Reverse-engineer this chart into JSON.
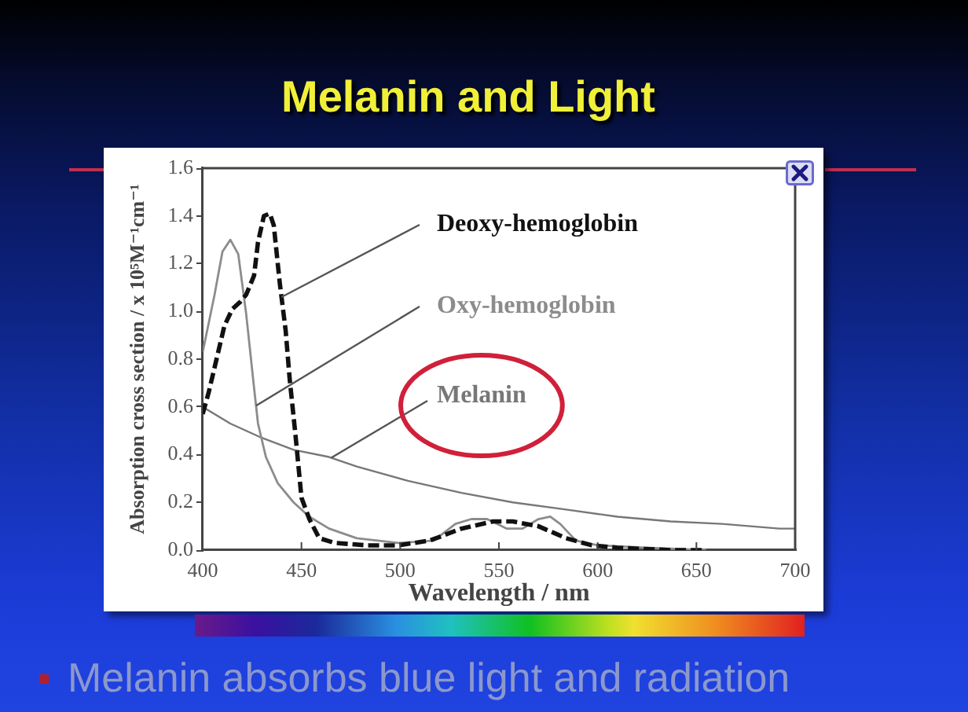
{
  "chart_data": {
    "type": "line",
    "title": "Melanin and Light",
    "xlabel": "Wavelength / nm",
    "ylabel": "Absorption cross section / x 10⁵M⁻¹cm⁻¹",
    "annotations": [
      "Melanin absorbs blue light and radiation"
    ],
    "xlim": [
      400,
      700
    ],
    "xticks": [
      400,
      450,
      500,
      550,
      600,
      650,
      700
    ],
    "ylim": [
      0,
      1.6
    ],
    "yticks": [
      {
        "value": 0,
        "label": "0.0"
      },
      0.2,
      0.4,
      0.6,
      0.8,
      {
        "value": 1,
        "label": "1.0"
      },
      1.2,
      1.4,
      1.6
    ],
    "legend": false,
    "marker": "none",
    "series": [
      {
        "name": "Deoxy-hemoglobin",
        "color": "#111111",
        "line_style": "dashed",
        "x": [
          400,
          403,
          407,
          411,
          415,
          419,
          422,
          426,
          428,
          431,
          434,
          436,
          439,
          442,
          444,
          447,
          450,
          454,
          459,
          467,
          483,
          499,
          515,
          531,
          547,
          557,
          570,
          584,
          597,
          610,
          637,
          655
        ],
        "values": [
          0.57,
          0.66,
          0.8,
          0.94,
          1.01,
          1.04,
          1.07,
          1.15,
          1.29,
          1.4,
          1.41,
          1.36,
          1.12,
          0.92,
          0.72,
          0.48,
          0.22,
          0.13,
          0.05,
          0.03,
          0.02,
          0.02,
          0.04,
          0.09,
          0.12,
          0.12,
          0.1,
          0.05,
          0.02,
          0.01,
          0,
          0
        ]
      },
      {
        "name": "Oxy-hemoglobin",
        "color": "#8c8c8c",
        "line_style": "solid",
        "x": [
          400,
          403,
          406,
          410,
          414,
          418,
          422,
          426,
          428,
          432,
          438,
          446,
          454,
          464,
          478,
          499,
          517,
          528,
          536,
          544,
          549,
          554,
          562,
          570,
          576,
          581,
          589,
          600,
          624,
          655
        ],
        "values": [
          0.83,
          0.95,
          1.07,
          1.25,
          1.3,
          1.24,
          0.99,
          0.68,
          0.53,
          0.39,
          0.28,
          0.2,
          0.14,
          0.09,
          0.05,
          0.03,
          0.04,
          0.11,
          0.13,
          0.13,
          0.11,
          0.09,
          0.09,
          0.13,
          0.14,
          0.11,
          0.04,
          0.02,
          0.01,
          0
        ]
      },
      {
        "name": "Melanin",
        "color": "#777777",
        "line_style": "solid",
        "x": [
          400,
          414,
          430,
          446,
          464,
          478,
          504,
          531,
          557,
          584,
          610,
          637,
          663,
          692,
          700
        ],
        "values": [
          0.6,
          0.53,
          0.47,
          0.42,
          0.39,
          0.35,
          0.29,
          0.24,
          0.2,
          0.17,
          0.14,
          0.12,
          0.11,
          0.09,
          0.09
        ]
      }
    ]
  }
}
